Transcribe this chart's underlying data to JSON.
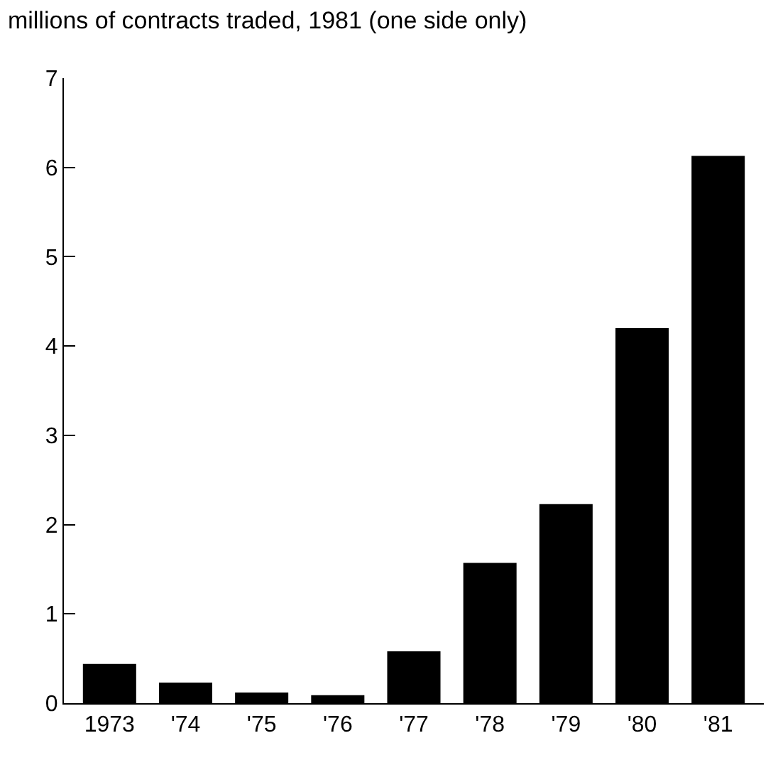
{
  "chart_data": {
    "type": "bar",
    "title": "millions of contracts traded, 1981 (one side only)",
    "categories": [
      "1973",
      "'74",
      "'75",
      "'76",
      "'77",
      "'78",
      "'79",
      "'80",
      "'81"
    ],
    "values": [
      0.44,
      0.23,
      0.12,
      0.09,
      0.58,
      1.57,
      2.23,
      4.2,
      6.13
    ],
    "color": "#000000",
    "ylim": [
      0,
      7
    ],
    "yticks": [
      0,
      1,
      2,
      3,
      4,
      5,
      6,
      7
    ]
  }
}
